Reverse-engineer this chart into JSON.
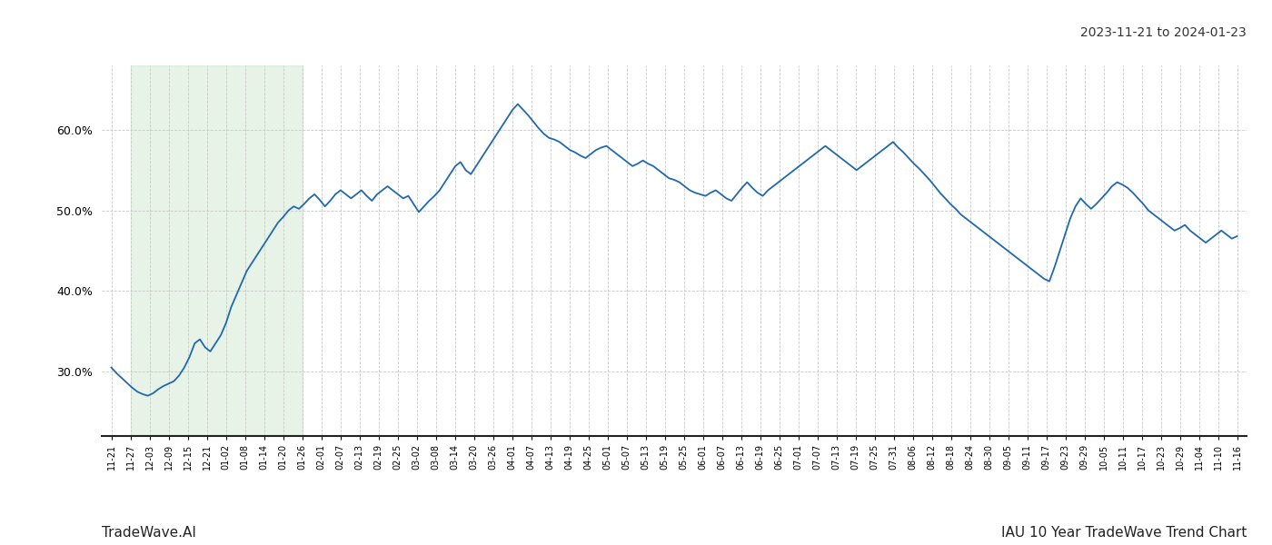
{
  "title_top_right": "2023-11-21 to 2024-01-23",
  "title_bottom_right": "IAU 10 Year TradeWave Trend Chart",
  "title_bottom_left": "TradeWave.AI",
  "line_color": "#2068b0",
  "line_width": 1.3,
  "shade_color": "#c8e6c9",
  "shade_alpha": 0.45,
  "background_color": "#ffffff",
  "grid_color": "#c8c8c8",
  "ylim": [
    22,
    68
  ],
  "yticks": [
    30.0,
    40.0,
    50.0,
    60.0
  ],
  "x_labels": [
    "11-21",
    "11-27",
    "12-03",
    "12-09",
    "12-15",
    "12-21",
    "01-02",
    "01-08",
    "01-14",
    "01-20",
    "01-26",
    "02-01",
    "02-07",
    "02-13",
    "02-19",
    "02-25",
    "03-02",
    "03-08",
    "03-14",
    "03-20",
    "03-26",
    "04-01",
    "04-07",
    "04-13",
    "04-19",
    "04-25",
    "05-01",
    "05-07",
    "05-13",
    "05-19",
    "05-25",
    "06-01",
    "06-07",
    "06-13",
    "06-19",
    "06-25",
    "07-01",
    "07-07",
    "07-13",
    "07-19",
    "07-25",
    "07-31",
    "08-06",
    "08-12",
    "08-18",
    "08-24",
    "08-30",
    "09-05",
    "09-11",
    "09-17",
    "09-23",
    "09-29",
    "10-05",
    "10-11",
    "10-17",
    "10-23",
    "10-29",
    "11-04",
    "11-10",
    "11-16"
  ],
  "shade_xstart_label": "11-27",
  "shade_xend_label": "01-26",
  "y_values": [
    30.5,
    29.8,
    29.2,
    28.6,
    28.0,
    27.5,
    27.2,
    27.0,
    27.3,
    27.8,
    28.2,
    28.5,
    28.8,
    29.5,
    30.5,
    31.8,
    33.5,
    34.0,
    33.0,
    32.5,
    33.5,
    34.5,
    36.0,
    38.0,
    39.5,
    41.0,
    42.5,
    43.5,
    44.5,
    45.5,
    46.5,
    47.5,
    48.5,
    49.2,
    50.0,
    50.5,
    50.2,
    50.8,
    51.5,
    52.0,
    51.3,
    50.5,
    51.2,
    52.0,
    52.5,
    52.0,
    51.5,
    52.0,
    52.5,
    51.8,
    51.2,
    52.0,
    52.5,
    53.0,
    52.5,
    52.0,
    51.5,
    51.8,
    50.8,
    49.8,
    50.5,
    51.2,
    51.8,
    52.5,
    53.5,
    54.5,
    55.5,
    56.0,
    55.0,
    54.5,
    55.5,
    56.5,
    57.5,
    58.5,
    59.5,
    60.5,
    61.5,
    62.5,
    63.2,
    62.5,
    61.8,
    61.0,
    60.2,
    59.5,
    59.0,
    58.8,
    58.5,
    58.0,
    57.5,
    57.2,
    56.8,
    56.5,
    57.0,
    57.5,
    57.8,
    58.0,
    57.5,
    57.0,
    56.5,
    56.0,
    55.5,
    55.8,
    56.2,
    55.8,
    55.5,
    55.0,
    54.5,
    54.0,
    53.8,
    53.5,
    53.0,
    52.5,
    52.2,
    52.0,
    51.8,
    52.2,
    52.5,
    52.0,
    51.5,
    51.2,
    52.0,
    52.8,
    53.5,
    52.8,
    52.2,
    51.8,
    52.5,
    53.0,
    53.5,
    54.0,
    54.5,
    55.0,
    55.5,
    56.0,
    56.5,
    57.0,
    57.5,
    58.0,
    57.5,
    57.0,
    56.5,
    56.0,
    55.5,
    55.0,
    55.5,
    56.0,
    56.5,
    57.0,
    57.5,
    58.0,
    58.5,
    57.8,
    57.2,
    56.5,
    55.8,
    55.2,
    54.5,
    53.8,
    53.0,
    52.2,
    51.5,
    50.8,
    50.2,
    49.5,
    49.0,
    48.5,
    48.0,
    47.5,
    47.0,
    46.5,
    46.0,
    45.5,
    45.0,
    44.5,
    44.0,
    43.5,
    43.0,
    42.5,
    42.0,
    41.5,
    41.2,
    43.0,
    45.0,
    47.0,
    49.0,
    50.5,
    51.5,
    50.8,
    50.2,
    50.8,
    51.5,
    52.2,
    53.0,
    53.5,
    53.2,
    52.8,
    52.2,
    51.5,
    50.8,
    50.0,
    49.5,
    49.0,
    48.5,
    48.0,
    47.5,
    47.8,
    48.2,
    47.5,
    47.0,
    46.5,
    46.0,
    46.5,
    47.0,
    47.5,
    47.0,
    46.5,
    46.8
  ]
}
